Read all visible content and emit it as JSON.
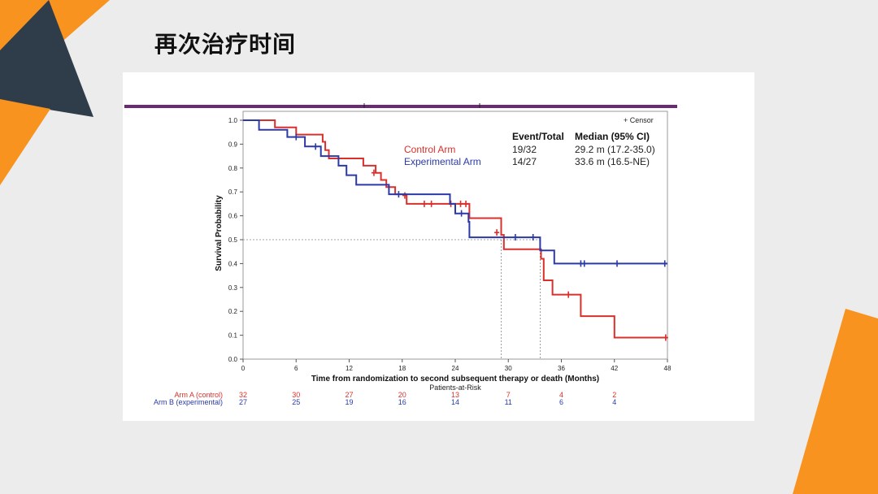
{
  "slide": {
    "title": "再次治疗时间"
  },
  "colors": {
    "accent_orange": "#f7931e",
    "accent_dark": "#2f3d4a",
    "control": "#d9302b",
    "experimental": "#2b3aa8",
    "header_bar": "#6b2a73"
  },
  "chart_data": {
    "type": "line",
    "subtype": "kaplan-meier",
    "xlabel": "Time from randomization to second subsequent therapy or death (Months)",
    "ylabel": "Survival Probability",
    "xlim": [
      0,
      48
    ],
    "ylim": [
      0,
      1
    ],
    "xticks": [
      0,
      6,
      12,
      18,
      24,
      30,
      36,
      42,
      48
    ],
    "xtick_labels": [
      "0",
      "6",
      "12",
      "18",
      "24",
      "30",
      "36",
      "42",
      "48"
    ],
    "yticks": [
      0,
      0.1,
      0.2,
      0.3,
      0.4,
      0.5,
      0.6,
      0.7,
      0.8,
      0.9,
      1.0
    ],
    "ytick_labels": [
      "0.0",
      "0.1",
      "0.2",
      "0.3",
      "0.4",
      "0.5",
      "0.6",
      "0.7",
      "0.8",
      "0.9",
      "1.0"
    ],
    "legend": {
      "censor_label": "+ Censor",
      "header_event": "Event/Total",
      "header_median": "Median (95% CI)"
    },
    "series": [
      {
        "name": "Control Arm",
        "event_total": "19/32",
        "median": "29.2 m (17.2-35.0)",
        "steps": [
          [
            0,
            1.0
          ],
          [
            3.6,
            0.97
          ],
          [
            6,
            0.94
          ],
          [
            9,
            0.91
          ],
          [
            9.3,
            0.875
          ],
          [
            9.7,
            0.84
          ],
          [
            13.6,
            0.81
          ],
          [
            15,
            0.78
          ],
          [
            15.6,
            0.75
          ],
          [
            16.2,
            0.72
          ],
          [
            17.2,
            0.69
          ],
          [
            18.5,
            0.65
          ],
          [
            25.6,
            0.59
          ],
          [
            29.2,
            0.52
          ],
          [
            29.5,
            0.46
          ],
          [
            33.7,
            0.42
          ],
          [
            34,
            0.33
          ],
          [
            35,
            0.27
          ],
          [
            38.2,
            0.18
          ],
          [
            42,
            0.09
          ],
          [
            48,
            0.09
          ]
        ],
        "censors": [
          [
            14.8,
            0.78
          ],
          [
            18.3,
            0.685
          ],
          [
            20.5,
            0.65
          ],
          [
            21.3,
            0.65
          ],
          [
            23.5,
            0.65
          ],
          [
            24.6,
            0.65
          ],
          [
            25.2,
            0.65
          ],
          [
            28.7,
            0.53
          ],
          [
            36.8,
            0.27
          ],
          [
            47.8,
            0.09
          ]
        ]
      },
      {
        "name": "Experimental Arm",
        "event_total": "14/27",
        "median": "33.6 m (16.5-NE)",
        "steps": [
          [
            0,
            1.0
          ],
          [
            1.8,
            0.96
          ],
          [
            5,
            0.93
          ],
          [
            7,
            0.89
          ],
          [
            8.8,
            0.85
          ],
          [
            10.8,
            0.81
          ],
          [
            11.7,
            0.77
          ],
          [
            12.8,
            0.73
          ],
          [
            16.5,
            0.69
          ],
          [
            19.8,
            0.69
          ],
          [
            23.4,
            0.65
          ],
          [
            24,
            0.61
          ],
          [
            25.5,
            0.575
          ],
          [
            25.6,
            0.51
          ],
          [
            33.6,
            0.455
          ],
          [
            35.2,
            0.4
          ],
          [
            48,
            0.4
          ]
        ],
        "censors": [
          [
            6,
            0.93
          ],
          [
            8.2,
            0.89
          ],
          [
            17.6,
            0.69
          ],
          [
            24.7,
            0.61
          ],
          [
            30.8,
            0.51
          ],
          [
            32.8,
            0.51
          ],
          [
            38.2,
            0.4
          ],
          [
            38.6,
            0.4
          ],
          [
            42.3,
            0.4
          ],
          [
            47.7,
            0.4
          ]
        ]
      }
    ],
    "reference_lines": {
      "median_level": 0.5,
      "median_times": [
        29.2,
        33.6
      ]
    },
    "risk_table": {
      "title": "Patients-at-Risk",
      "times": [
        0,
        6,
        12,
        18,
        24,
        30,
        36,
        42
      ],
      "rows": [
        {
          "label": "Arm A (control)",
          "counts": [
            "32",
            "30",
            "27",
            "20",
            "13",
            "7",
            "4",
            "2"
          ]
        },
        {
          "label": "Arm B (experimental)",
          "counts": [
            "27",
            "25",
            "19",
            "16",
            "14",
            "11",
            "6",
            "4"
          ]
        }
      ]
    }
  }
}
